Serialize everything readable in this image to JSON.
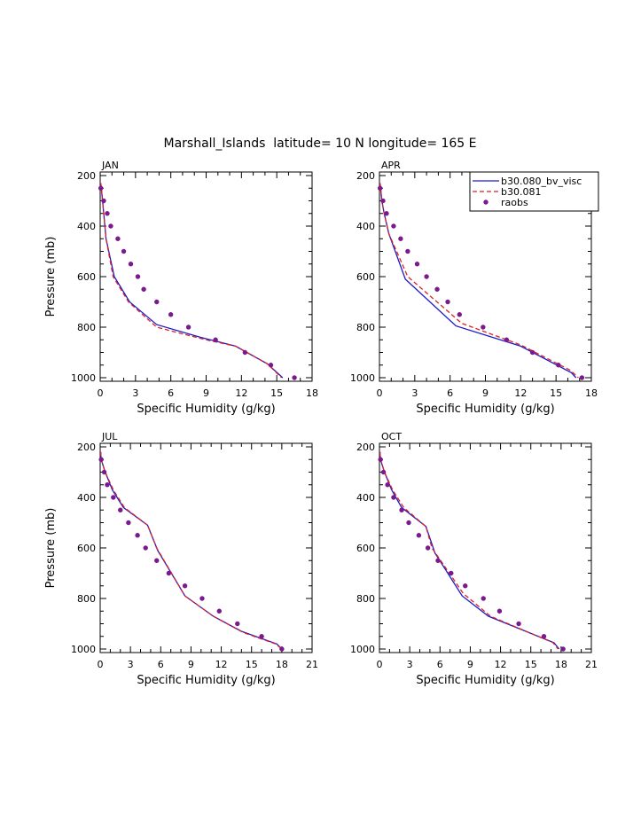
{
  "title": "Marshall_Islands  latitude= 10 N longitude= 165 E",
  "colors": {
    "b30_080": "#1a1acc",
    "b30_081": "#e02020",
    "raobs": "#7a1a8c",
    "axis": "#000000"
  },
  "legend": {
    "items": [
      {
        "label": "b30.080_bv_visc",
        "style": "solid-line",
        "color": "#1a1acc"
      },
      {
        "label": "b30.081",
        "style": "dashed-line",
        "color": "#e02020"
      },
      {
        "label": "raobs",
        "style": "dot",
        "color": "#7a1a8c"
      }
    ]
  },
  "chart_data": [
    {
      "type": "line",
      "panel": "JAN",
      "xlabel": "Specific Humidity (g/kg)",
      "ylabel": "Pressure (mb)",
      "xlim": [
        0,
        18
      ],
      "ylim": [
        1000,
        200
      ],
      "xticks": [
        0,
        3,
        6,
        9,
        12,
        15,
        18
      ],
      "yticks": [
        200,
        400,
        600,
        800,
        1000
      ],
      "y_inverted": true,
      "series": [
        {
          "name": "b30.080_bv_visc",
          "style": "solid",
          "points": [
            [
              0.05,
              230
            ],
            [
              0.1,
              250
            ],
            [
              0.2,
              300
            ],
            [
              0.3,
              350
            ],
            [
              0.5,
              450
            ],
            [
              1.2,
              600
            ],
            [
              2.5,
              700
            ],
            [
              4.8,
              790
            ],
            [
              8.5,
              840
            ],
            [
              11.5,
              875
            ],
            [
              14.2,
              945
            ],
            [
              15.5,
              1000
            ]
          ]
        },
        {
          "name": "b30.081",
          "style": "dashed",
          "points": [
            [
              0.05,
              230
            ],
            [
              0.1,
              250
            ],
            [
              0.2,
              300
            ],
            [
              0.3,
              350
            ],
            [
              0.5,
              450
            ],
            [
              1.1,
              600
            ],
            [
              2.4,
              700
            ],
            [
              4.8,
              800
            ],
            [
              9.0,
              850
            ],
            [
              11.5,
              875
            ],
            [
              14.2,
              945
            ],
            [
              15.4,
              1000
            ]
          ]
        },
        {
          "name": "raobs",
          "style": "dots",
          "points": [
            [
              0.05,
              250
            ],
            [
              0.3,
              300
            ],
            [
              0.6,
              350
            ],
            [
              0.9,
              400
            ],
            [
              1.5,
              450
            ],
            [
              2.0,
              500
            ],
            [
              2.6,
              550
            ],
            [
              3.2,
              600
            ],
            [
              3.7,
              650
            ],
            [
              4.8,
              700
            ],
            [
              6.0,
              750
            ],
            [
              7.5,
              800
            ],
            [
              9.8,
              850
            ],
            [
              12.3,
              900
            ],
            [
              14.5,
              950
            ],
            [
              16.5,
              1000
            ]
          ]
        }
      ]
    },
    {
      "type": "line",
      "panel": "APR",
      "xlabel": "Specific Humidity (g/kg)",
      "ylabel": "",
      "xlim": [
        0,
        18
      ],
      "ylim": [
        1000,
        200
      ],
      "xticks": [
        0,
        3,
        6,
        9,
        12,
        15,
        18
      ],
      "yticks": [
        200,
        400,
        600,
        800,
        1000
      ],
      "y_inverted": true,
      "series": [
        {
          "name": "b30.080_bv_visc",
          "style": "solid",
          "points": [
            [
              0.05,
              230
            ],
            [
              0.1,
              250
            ],
            [
              0.2,
              300
            ],
            [
              0.4,
              350
            ],
            [
              0.8,
              430
            ],
            [
              2.2,
              610
            ],
            [
              6.5,
              795
            ],
            [
              12.0,
              875
            ],
            [
              16.3,
              980
            ],
            [
              16.7,
              1000
            ]
          ]
        },
        {
          "name": "b30.081",
          "style": "dashed",
          "points": [
            [
              0.05,
              230
            ],
            [
              0.1,
              250
            ],
            [
              0.2,
              300
            ],
            [
              0.4,
              350
            ],
            [
              0.8,
              430
            ],
            [
              2.4,
              600
            ],
            [
              7.0,
              785
            ],
            [
              12.0,
              870
            ],
            [
              16.2,
              970
            ],
            [
              16.9,
              1000
            ]
          ]
        },
        {
          "name": "raobs",
          "style": "dots",
          "points": [
            [
              0.05,
              250
            ],
            [
              0.3,
              300
            ],
            [
              0.6,
              350
            ],
            [
              1.2,
              400
            ],
            [
              1.8,
              450
            ],
            [
              2.4,
              500
            ],
            [
              3.2,
              550
            ],
            [
              4.0,
              600
            ],
            [
              4.9,
              650
            ],
            [
              5.8,
              700
            ],
            [
              6.8,
              750
            ],
            [
              8.8,
              800
            ],
            [
              10.8,
              850
            ],
            [
              13.0,
              900
            ],
            [
              15.2,
              950
            ],
            [
              17.2,
              1000
            ]
          ]
        }
      ]
    },
    {
      "type": "line",
      "panel": "JUL",
      "xlabel": "Specific Humidity (g/kg)",
      "ylabel": "Pressure (mb)",
      "xlim": [
        0,
        21
      ],
      "ylim": [
        1000,
        200
      ],
      "xticks": [
        0,
        3,
        6,
        9,
        12,
        15,
        18,
        21
      ],
      "yticks": [
        200,
        400,
        600,
        800,
        1000
      ],
      "y_inverted": true,
      "series": [
        {
          "name": "b30.080_bv_visc",
          "style": "solid",
          "points": [
            [
              0.05,
              220
            ],
            [
              0.1,
              250
            ],
            [
              0.5,
              300
            ],
            [
              1.2,
              370
            ],
            [
              2.3,
              440
            ],
            [
              4.7,
              510
            ],
            [
              5.7,
              610
            ],
            [
              8.4,
              790
            ],
            [
              11.2,
              870
            ],
            [
              14.0,
              930
            ],
            [
              17.5,
              980
            ],
            [
              18.0,
              1000
            ]
          ]
        },
        {
          "name": "b30.081",
          "style": "dashed",
          "points": [
            [
              0.05,
              220
            ],
            [
              0.1,
              250
            ],
            [
              0.5,
              300
            ],
            [
              1.3,
              370
            ],
            [
              2.4,
              440
            ],
            [
              4.7,
              510
            ],
            [
              5.6,
              600
            ],
            [
              8.4,
              790
            ],
            [
              11.2,
              870
            ],
            [
              14.2,
              935
            ],
            [
              17.4,
              980
            ],
            [
              18.0,
              1000
            ]
          ]
        },
        {
          "name": "raobs",
          "style": "dots",
          "points": [
            [
              0.1,
              250
            ],
            [
              0.4,
              300
            ],
            [
              0.7,
              350
            ],
            [
              1.3,
              400
            ],
            [
              2.0,
              450
            ],
            [
              2.8,
              500
            ],
            [
              3.7,
              550
            ],
            [
              4.5,
              600
            ],
            [
              5.6,
              650
            ],
            [
              6.8,
              700
            ],
            [
              8.4,
              750
            ],
            [
              10.1,
              800
            ],
            [
              11.8,
              850
            ],
            [
              13.6,
              900
            ],
            [
              16.0,
              950
            ],
            [
              18.0,
              1000
            ]
          ]
        }
      ]
    },
    {
      "type": "line",
      "panel": "OCT",
      "xlabel": "Specific Humidity (g/kg)",
      "ylabel": "",
      "xlim": [
        0,
        21
      ],
      "ylim": [
        1000,
        200
      ],
      "xticks": [
        0,
        3,
        6,
        9,
        12,
        15,
        18,
        21
      ],
      "yticks": [
        200,
        400,
        600,
        800,
        1000
      ],
      "y_inverted": true,
      "series": [
        {
          "name": "b30.080_bv_visc",
          "style": "solid",
          "points": [
            [
              0.05,
              220
            ],
            [
              0.1,
              250
            ],
            [
              0.5,
              300
            ],
            [
              1.2,
              370
            ],
            [
              2.2,
              440
            ],
            [
              4.6,
              515
            ],
            [
              5.5,
              620
            ],
            [
              8.2,
              790
            ],
            [
              10.8,
              870
            ],
            [
              17.3,
              975
            ],
            [
              17.8,
              1000
            ]
          ]
        },
        {
          "name": "b30.081",
          "style": "dashed",
          "points": [
            [
              0.05,
              220
            ],
            [
              0.1,
              250
            ],
            [
              0.5,
              300
            ],
            [
              1.3,
              370
            ],
            [
              2.4,
              440
            ],
            [
              4.6,
              515
            ],
            [
              5.2,
              600
            ],
            [
              8.3,
              780
            ],
            [
              11.0,
              870
            ],
            [
              17.2,
              975
            ],
            [
              17.7,
              1000
            ]
          ]
        },
        {
          "name": "raobs",
          "style": "dots",
          "points": [
            [
              0.1,
              250
            ],
            [
              0.4,
              300
            ],
            [
              0.8,
              350
            ],
            [
              1.4,
              400
            ],
            [
              2.2,
              450
            ],
            [
              2.9,
              500
            ],
            [
              3.9,
              550
            ],
            [
              4.8,
              600
            ],
            [
              5.8,
              650
            ],
            [
              7.1,
              700
            ],
            [
              8.5,
              750
            ],
            [
              10.3,
              800
            ],
            [
              11.9,
              850
            ],
            [
              13.8,
              900
            ],
            [
              16.3,
              950
            ],
            [
              18.2,
              1000
            ]
          ]
        }
      ]
    }
  ]
}
